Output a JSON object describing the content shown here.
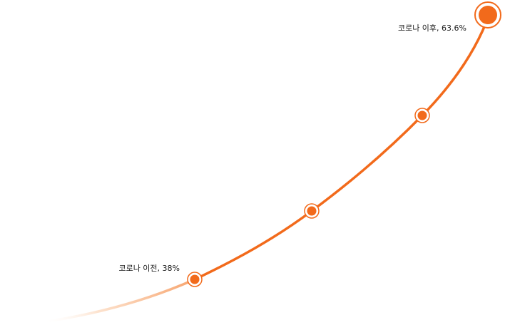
{
  "chart_data": {
    "type": "line",
    "accent_color": "#f26a1b",
    "fade_color": "#fcd3b6",
    "points": [
      {
        "label": "코로나 이전, 38%",
        "value": 38,
        "marker": "large"
      },
      {
        "label": "",
        "value": null,
        "marker": "small"
      },
      {
        "label": "",
        "value": null,
        "marker": "small"
      },
      {
        "label": "코로나 이후, 63.6%",
        "value": 63.6,
        "marker": "highlight"
      }
    ]
  }
}
